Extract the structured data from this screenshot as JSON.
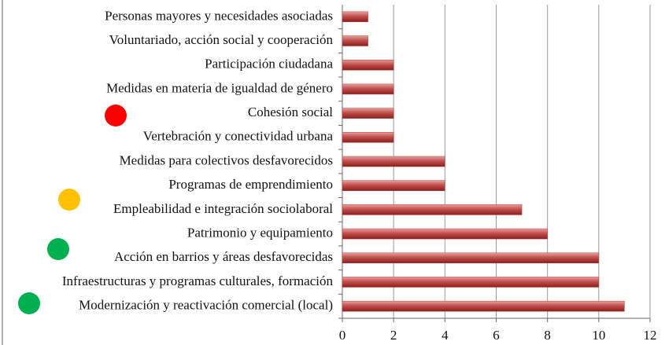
{
  "chart_data": {
    "type": "bar",
    "orientation": "horizontal",
    "categories": [
      "Personas mayores y necesidades asociadas",
      "Voluntariado, acción social y cooperación",
      "Participación ciudadana",
      "Medidas en materia de igualdad de género",
      "Cohesión social",
      "Vertebración y conectividad urbana",
      "Medidas para colectivos desfavorecidos",
      "Programas de emprendimiento",
      "Empleabilidad e integración sociolaboral",
      "Patrimonio y equipamiento",
      "Acción en barrios y áreas desfavorecidas",
      "Infraestructuras y programas culturales, formación",
      "Modernización y reactivación comercial (local)"
    ],
    "values": [
      1,
      1,
      2,
      2,
      2,
      2,
      4,
      4,
      7,
      8,
      10,
      10,
      11
    ],
    "color": "#c0392b",
    "xlim": [
      0,
      12
    ],
    "xticks": [
      0,
      2,
      4,
      6,
      8,
      10,
      12
    ],
    "grid": true
  }
}
